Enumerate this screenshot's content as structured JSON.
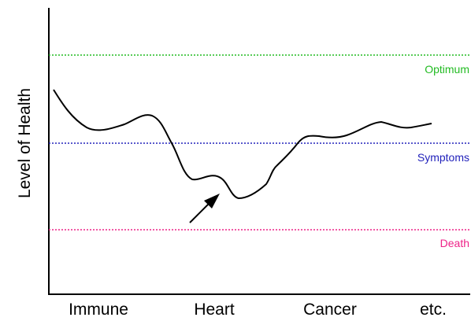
{
  "chart_data": {
    "type": "line",
    "ylabel": "Level of Health",
    "categories": [
      "Immune",
      "Heart",
      "Cancer",
      "etc."
    ],
    "reference_lines": [
      {
        "label": "Optimum",
        "color": "#22bb22"
      },
      {
        "label": "Symptoms",
        "color": "#2222bb"
      },
      {
        "label": "Death",
        "color": "#ee2288"
      }
    ],
    "series": [
      {
        "color": "#000000"
      }
    ],
    "annotations": [
      {
        "type": "arrow",
        "color": "#000000"
      }
    ]
  }
}
